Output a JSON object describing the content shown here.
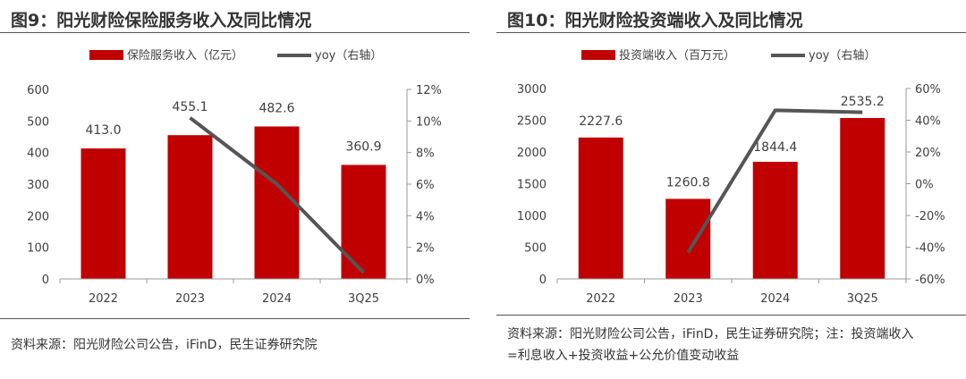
{
  "colors": {
    "bar": "#c00000",
    "line": "#555555",
    "axis": "#999999",
    "text": "#404040"
  },
  "chart_data": [
    {
      "type": "bar",
      "title": "图9：阳光财险保险服务收入及同比情况",
      "categories": [
        "2022",
        "2023",
        "2024",
        "3Q25"
      ],
      "series": [
        {
          "name": "保险服务收入（亿元）",
          "type": "bar",
          "axis": "left",
          "values": [
            413.0,
            455.1,
            482.6,
            360.9
          ],
          "labels": [
            "413.0",
            "455.1",
            "482.6",
            "360.9"
          ]
        },
        {
          "name": "yoy（右轴）",
          "type": "line",
          "axis": "right",
          "values": [
            null,
            10.2,
            6.0,
            0.4
          ]
        }
      ],
      "y_left": {
        "min": 0,
        "max": 600,
        "ticks": [
          "0",
          "100",
          "200",
          "300",
          "400",
          "500",
          "600"
        ]
      },
      "y_right": {
        "min": 0,
        "max": 12,
        "ticks": [
          "0%",
          "2%",
          "4%",
          "6%",
          "8%",
          "10%",
          "12%"
        ]
      },
      "legend_position": "top",
      "source": "资料来源：阳光财险公司公告，iFinD，民生证券研究院"
    },
    {
      "type": "bar",
      "title": "图10：阳光财险投资端收入及同比情况",
      "categories": [
        "2022",
        "2023",
        "2024",
        "3Q25"
      ],
      "series": [
        {
          "name": "投资端收入（百万元）",
          "type": "bar",
          "axis": "left",
          "values": [
            2227.6,
            1260.8,
            1844.4,
            2535.2
          ],
          "labels": [
            "2227.6",
            "1260.8",
            "1844.4",
            "2535.2"
          ]
        },
        {
          "name": "yoy（右轴）",
          "type": "line",
          "axis": "right",
          "values": [
            null,
            -43.4,
            46.3,
            45.0
          ]
        }
      ],
      "y_left": {
        "min": 0,
        "max": 3000,
        "ticks": [
          "0",
          "500",
          "1000",
          "1500",
          "2000",
          "2500",
          "3000"
        ]
      },
      "y_right": {
        "min": -60,
        "max": 60,
        "ticks": [
          "-60%",
          "-40%",
          "-20%",
          "0%",
          "20%",
          "40%",
          "60%"
        ]
      },
      "legend_position": "top",
      "source": "资料来源：阳光财险公司公告，iFinD，民生证券研究院；注：投资端收入",
      "source_line2": "=利息收入+投资收益+公允价值变动收益"
    }
  ]
}
